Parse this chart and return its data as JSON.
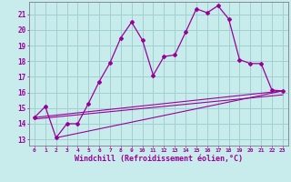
{
  "background_color": "#c8ecec",
  "grid_color": "#a0d0d0",
  "line_color": "#990099",
  "xlabel": "Windchill (Refroidissement éolien,°C)",
  "xlabel_fontsize": 6.0,
  "xtick_labels": [
    "0",
    "1",
    "2",
    "3",
    "4",
    "5",
    "6",
    "7",
    "8",
    "9",
    "10",
    "11",
    "12",
    "13",
    "14",
    "15",
    "16",
    "17",
    "18",
    "19",
    "20",
    "21",
    "22",
    "23"
  ],
  "ytick_labels": [
    "13",
    "14",
    "15",
    "16",
    "17",
    "18",
    "19",
    "20",
    "21"
  ],
  "ytick_vals": [
    13,
    14,
    15,
    16,
    17,
    18,
    19,
    20,
    21
  ],
  "ylim": [
    12.6,
    21.8
  ],
  "xlim": [
    -0.5,
    23.5
  ],
  "series1_x": [
    0,
    1,
    2,
    3,
    4,
    5,
    6,
    7,
    8,
    9,
    10,
    11,
    12,
    13,
    14,
    15,
    16,
    17,
    18,
    19,
    20,
    21,
    22,
    23
  ],
  "series1_y": [
    14.4,
    15.1,
    13.1,
    14.0,
    14.0,
    15.3,
    16.7,
    17.9,
    19.5,
    20.5,
    19.35,
    17.1,
    18.3,
    18.4,
    19.85,
    21.35,
    21.1,
    21.55,
    20.7,
    18.1,
    17.85,
    17.85,
    16.15,
    16.1
  ],
  "trend1_x": [
    0,
    23
  ],
  "trend1_y": [
    14.4,
    16.1
  ],
  "trend2_x": [
    0,
    23
  ],
  "trend2_y": [
    14.3,
    15.85
  ],
  "trend3_x": [
    2,
    23
  ],
  "trend3_y": [
    13.1,
    16.1
  ]
}
